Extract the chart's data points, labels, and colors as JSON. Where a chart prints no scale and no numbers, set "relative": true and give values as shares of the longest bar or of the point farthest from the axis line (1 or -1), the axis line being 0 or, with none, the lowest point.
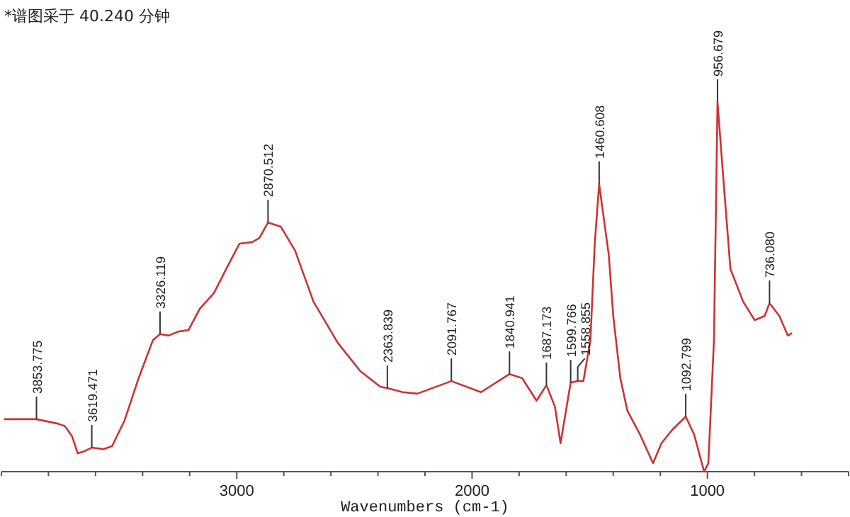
{
  "chart_data": {
    "type": "line",
    "title": "*谱图采于 40.240 分钟",
    "xlabel": "Wavenumbers (cm-1)",
    "relative": true,
    "xlim": [
      4000,
      400
    ],
    "xticks": [
      {
        "value": 4000,
        "label": null
      },
      {
        "value": 3800,
        "label": null
      },
      {
        "value": 3600,
        "label": null
      },
      {
        "value": 3400,
        "label": null
      },
      {
        "value": 3200,
        "label": null
      },
      3000,
      {
        "value": 2800,
        "label": null
      },
      {
        "value": 2600,
        "label": null
      },
      {
        "value": 2400,
        "label": null
      },
      {
        "value": 2200,
        "label": null
      },
      2000,
      {
        "value": 1800,
        "label": null
      },
      {
        "value": 1600,
        "label": null
      },
      {
        "value": 1400,
        "label": null
      },
      {
        "value": 1200,
        "label": null
      },
      1000,
      {
        "value": 800,
        "label": null
      },
      {
        "value": 600,
        "label": null
      },
      {
        "value": 400,
        "label": null
      }
    ],
    "series": [
      {
        "color": "#cc3333",
        "x": [
          3990,
          3851,
          3761,
          3730,
          3700,
          3676,
          3652,
          3616,
          3567,
          3530,
          3477,
          3417,
          3356,
          3326,
          3290,
          3248,
          3205,
          3157,
          3097,
          3036,
          2988,
          2934,
          2904,
          2867,
          2813,
          2752,
          2674,
          2571,
          2475,
          2390,
          2360,
          2294,
          2233,
          2088,
          1962,
          1841,
          1787,
          1726,
          1684,
          1648,
          1624,
          1581,
          1551,
          1527,
          1497,
          1479,
          1460,
          1419,
          1400,
          1370,
          1340,
          1286,
          1231,
          1195,
          1147,
          1092,
          1056,
          1014,
          996,
          972,
          957,
          929,
          902,
          848,
          799,
          757,
          736,
          694,
          658,
          640
        ],
        "values": [
          0.142,
          0.142,
          0.13,
          0.123,
          0.096,
          0.05,
          0.054,
          0.065,
          0.061,
          0.069,
          0.138,
          0.253,
          0.356,
          0.372,
          0.368,
          0.379,
          0.383,
          0.441,
          0.483,
          0.559,
          0.617,
          0.621,
          0.632,
          0.674,
          0.663,
          0.598,
          0.46,
          0.349,
          0.272,
          0.23,
          0.226,
          0.215,
          0.211,
          0.245,
          0.215,
          0.264,
          0.253,
          0.192,
          0.234,
          0.176,
          0.077,
          0.241,
          0.245,
          0.245,
          0.356,
          0.613,
          0.778,
          0.586,
          0.421,
          0.253,
          0.165,
          0.1,
          0.023,
          0.077,
          0.115,
          0.149,
          0.1,
          0.0,
          0.023,
          0.356,
          1.0,
          0.766,
          0.548,
          0.46,
          0.41,
          0.421,
          0.456,
          0.421,
          0.368,
          0.375
        ]
      }
    ],
    "annotations": [
      {
        "text": "3853.775",
        "x": 3851,
        "y": 0.142
      },
      {
        "text": "3619.471",
        "x": 3616,
        "y": 0.065
      },
      {
        "text": "3326.119",
        "x": 3326,
        "y": 0.372
      },
      {
        "text": "2870.512",
        "x": 2867,
        "y": 0.674
      },
      {
        "text": "2363.839",
        "x": 2360,
        "y": 0.226
      },
      {
        "text": "2091.767",
        "x": 2088,
        "y": 0.245
      },
      {
        "text": "1840.941",
        "x": 1841,
        "y": 0.264
      },
      {
        "text": "1687.173",
        "x": 1684,
        "y": 0.234
      },
      {
        "text": "1599.766",
        "x": 1581,
        "y": 0.241
      },
      {
        "text": "1558.855",
        "x": 1551,
        "y": 0.245
      },
      {
        "text": "1460.608",
        "x": 1460,
        "y": 0.778
      },
      {
        "text": "1092.799",
        "x": 1092,
        "y": 0.149
      },
      {
        "text": "956.679",
        "x": 957,
        "y": 1.0
      },
      {
        "text": "736.080",
        "x": 736,
        "y": 0.456
      }
    ]
  }
}
